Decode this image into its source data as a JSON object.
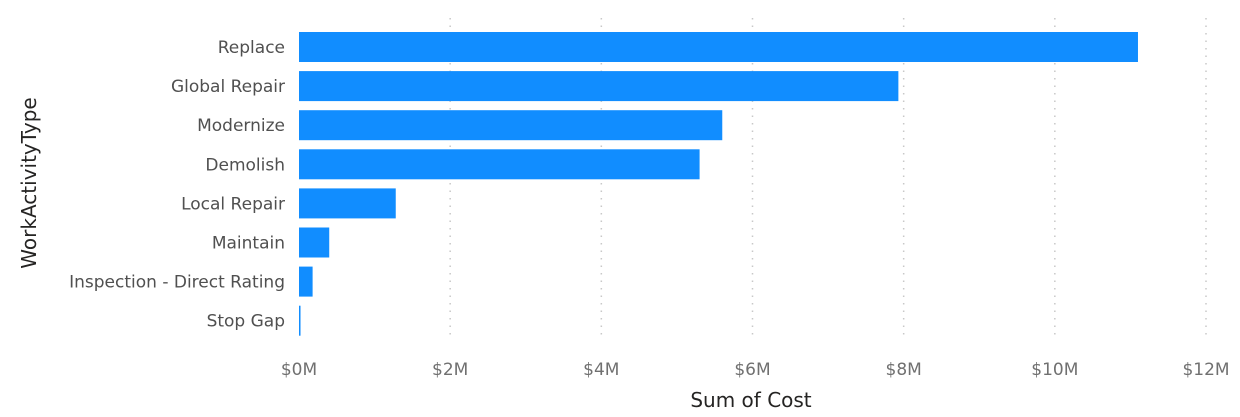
{
  "chart_data": {
    "type": "bar",
    "orientation": "horizontal",
    "categories": [
      "Replace",
      "Global Repair",
      "Modernize",
      "Demolish",
      "Local Repair",
      "Maintain",
      "Inspection - Direct Rating",
      "Stop Gap"
    ],
    "values": [
      11100000,
      7930000,
      5600000,
      5300000,
      1280000,
      400000,
      180000,
      20000
    ],
    "xlabel": "Sum of Cost",
    "ylabel": "WorkActivityType",
    "xlim": [
      0,
      12000000
    ],
    "x_ticks": [
      0,
      2000000,
      4000000,
      6000000,
      8000000,
      10000000,
      12000000
    ],
    "x_tick_labels": [
      "$0M",
      "$2M",
      "$4M",
      "$6M",
      "$8M",
      "$10M",
      "$12M"
    ],
    "grid": "vertical-dotted",
    "bar_color": "#118DFF"
  }
}
